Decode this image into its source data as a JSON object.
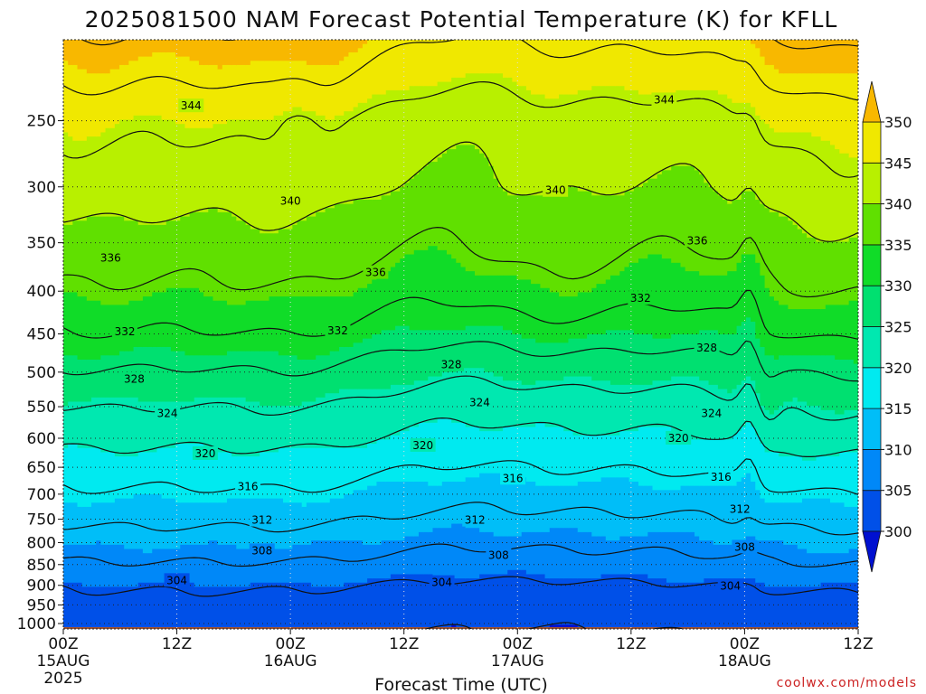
{
  "chart_data": {
    "type": "heatmap",
    "title": "2025081500 NAM Forecast Potential Temperature (K) for KFLL",
    "xlabel": "Forecast Time (UTC)",
    "ylabel": "",
    "credit": "coolwx.com/models",
    "x_ticks": [
      {
        "hour": 0,
        "label": "00Z",
        "date": "15AUG",
        "year": "2025"
      },
      {
        "hour": 12,
        "label": "12Z",
        "date": "",
        "year": ""
      },
      {
        "hour": 24,
        "label": "00Z",
        "date": "16AUG",
        "year": ""
      },
      {
        "hour": 36,
        "label": "12Z",
        "date": "",
        "year": ""
      },
      {
        "hour": 48,
        "label": "00Z",
        "date": "17AUG",
        "year": ""
      },
      {
        "hour": 60,
        "label": "12Z",
        "date": "",
        "year": ""
      },
      {
        "hour": 72,
        "label": "00Z",
        "date": "18AUG",
        "year": ""
      },
      {
        "hour": 84,
        "label": "12Z",
        "date": "",
        "year": ""
      }
    ],
    "x_range_hours": [
      0,
      84
    ],
    "y_axis": "pressure (hPa), log scale, 1000 at bottom",
    "y_range": [
      1015,
      200
    ],
    "y_ticks": [
      250,
      300,
      350,
      400,
      450,
      500,
      550,
      600,
      650,
      700,
      750,
      800,
      850,
      900,
      950,
      1000
    ],
    "colorbar": {
      "levels": [
        300,
        305,
        310,
        315,
        320,
        325,
        330,
        335,
        340,
        345,
        350
      ],
      "colors": [
        "#0010d0",
        "#0050e8",
        "#0088f8",
        "#00bef8",
        "#00eaf0",
        "#00e8b0",
        "#00e070",
        "#10dc28",
        "#60e000",
        "#b8f000",
        "#f0e800",
        "#f8b800"
      ]
    },
    "contour_interval": 4,
    "contour_labels": [
      {
        "value": "344",
        "hour": 13.5,
        "p": 240
      },
      {
        "value": "344",
        "hour": 63.5,
        "p": 236
      },
      {
        "value": "340",
        "hour": 24,
        "p": 312
      },
      {
        "value": "340",
        "hour": 52,
        "p": 303
      },
      {
        "value": "336",
        "hour": 5,
        "p": 365
      },
      {
        "value": "336",
        "hour": 33,
        "p": 380
      },
      {
        "value": "336",
        "hour": 67,
        "p": 348
      },
      {
        "value": "332",
        "hour": 6.5,
        "p": 447
      },
      {
        "value": "332",
        "hour": 29,
        "p": 446
      },
      {
        "value": "332",
        "hour": 61,
        "p": 408
      },
      {
        "value": "328",
        "hour": 7.5,
        "p": 510
      },
      {
        "value": "328",
        "hour": 41,
        "p": 490
      },
      {
        "value": "328",
        "hour": 68,
        "p": 468
      },
      {
        "value": "324",
        "hour": 11,
        "p": 560
      },
      {
        "value": "324",
        "hour": 44,
        "p": 544
      },
      {
        "value": "324",
        "hour": 68.5,
        "p": 560
      },
      {
        "value": "320",
        "hour": 15,
        "p": 626
      },
      {
        "value": "320",
        "hour": 38,
        "p": 612
      },
      {
        "value": "320",
        "hour": 65,
        "p": 600
      },
      {
        "value": "316",
        "hour": 19.5,
        "p": 686
      },
      {
        "value": "316",
        "hour": 47.5,
        "p": 670
      },
      {
        "value": "316",
        "hour": 69.5,
        "p": 668
      },
      {
        "value": "312",
        "hour": 21,
        "p": 752
      },
      {
        "value": "312",
        "hour": 43.5,
        "p": 752
      },
      {
        "value": "312",
        "hour": 71.5,
        "p": 730
      },
      {
        "value": "308",
        "hour": 21,
        "p": 818
      },
      {
        "value": "308",
        "hour": 46,
        "p": 828
      },
      {
        "value": "308",
        "hour": 72,
        "p": 810
      },
      {
        "value": "304",
        "hour": 12,
        "p": 888
      },
      {
        "value": "304",
        "hour": 40,
        "p": 893
      },
      {
        "value": "304",
        "hour": 70.5,
        "p": 902
      }
    ]
  }
}
